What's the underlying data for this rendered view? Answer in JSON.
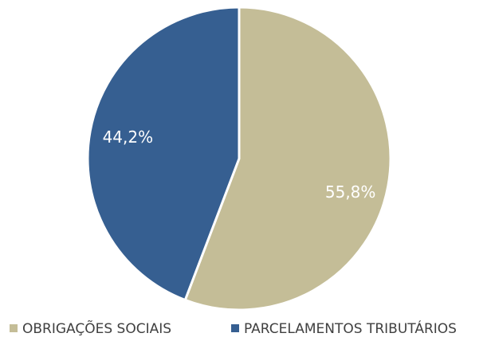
{
  "chart_data": {
    "type": "pie",
    "categories": [
      "OBRIGAÇÕES SOCIAIS",
      "PARCELAMENTOS TRIBUTÁRIOS"
    ],
    "values": [
      55.8,
      44.2
    ],
    "value_labels": [
      "55,8%",
      "44,2%"
    ],
    "colors": [
      "#c4bd97",
      "#365f91"
    ],
    "legend": "bottom"
  }
}
